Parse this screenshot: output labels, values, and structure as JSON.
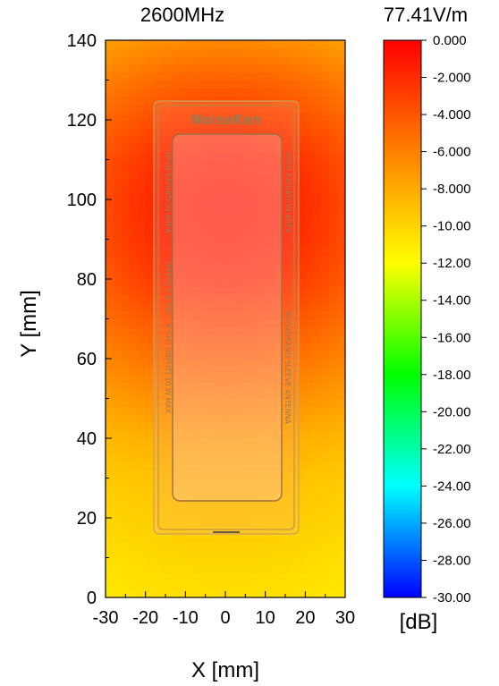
{
  "chart_data": {
    "type": "heatmap",
    "frequency_label": "2600MHz",
    "max_field_label": "77.41V/m",
    "xlabel": "X [mm]",
    "ylabel": "Y [mm]",
    "xlim": [
      -30,
      30
    ],
    "ylim": [
      0,
      140
    ],
    "xticks": [
      "-30",
      "-20",
      "-10",
      "0",
      "10",
      "20",
      "30"
    ],
    "yticks": [
      "0",
      "20",
      "40",
      "60",
      "80",
      "100",
      "120",
      "140"
    ],
    "grid": false,
    "colorbar": {
      "unit_label": "[dB]",
      "range": [
        -30,
        0
      ],
      "ticks": [
        "0.000",
        "-2.000",
        "-4.000",
        "-6.000",
        "-8.000",
        "-10.00",
        "-12.00",
        "-14.00",
        "-16.00",
        "-18.00",
        "-20.00",
        "-22.00",
        "-24.00",
        "-26.00",
        "-28.00",
        "-30.00"
      ]
    },
    "field_profile": {
      "description_axis": "y",
      "y_mm": [
        0,
        10,
        20,
        30,
        40,
        50,
        60,
        70,
        80,
        90,
        100,
        110,
        120,
        130,
        140
      ],
      "center_db": [
        -10.5,
        -10,
        -9.5,
        -9,
        -8,
        -6.5,
        -5,
        -3.5,
        -2,
        -1.2,
        -1,
        -1.5,
        -3,
        -4.5,
        -6.5
      ],
      "edge_db": [
        -11,
        -10.5,
        -10,
        -9.5,
        -8.7,
        -7.5,
        -6.3,
        -5.2,
        -4.2,
        -3.6,
        -3.5,
        -3.8,
        -4.8,
        -6,
        -7.5
      ]
    },
    "device_overlay": {
      "brand": "NoiseKen",
      "label_left_top": "HIGH RADIATION AREA",
      "label_right_top": "HIGH RADIATION AREA",
      "label_left_bottom": "[FREQ] 2.4 GHz - 6 GHz   [INPUT] 10 W MAX",
      "label_right_bottom": "BROADBAND SLEEVE ANTENNA"
    },
    "colors": {
      "scale": [
        "#ff0000",
        "#ff8000",
        "#ffff00",
        "#00ff00",
        "#00ffff",
        "#0000ff"
      ]
    }
  }
}
